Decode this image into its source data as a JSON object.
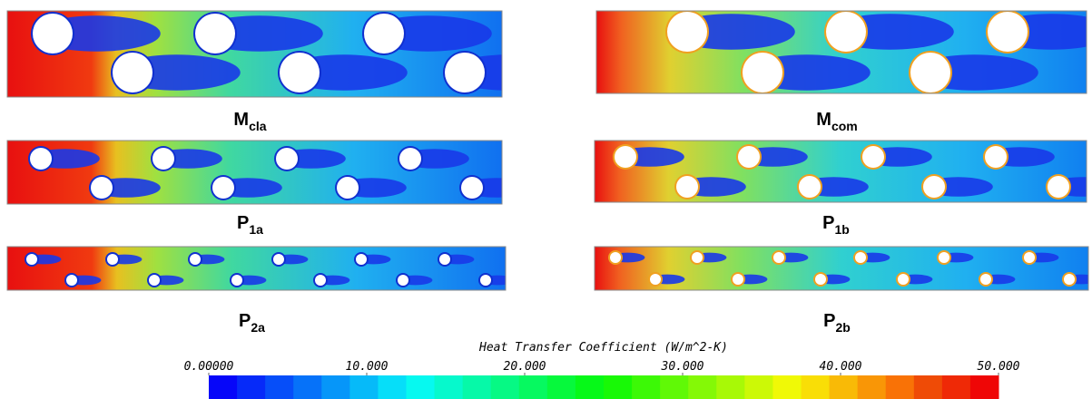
{
  "panels": [
    {
      "label": {
        "main": "M",
        "sub": "cla"
      }
    },
    {
      "label": {
        "main": "M",
        "sub": "com"
      }
    },
    {
      "label": {
        "main": "P",
        "sub": "1a"
      }
    },
    {
      "label": {
        "main": "P",
        "sub": "1b"
      }
    },
    {
      "label": {
        "main": "P",
        "sub": "2a"
      }
    },
    {
      "label": {
        "main": "P",
        "sub": "2b"
      }
    }
  ],
  "colorbar": {
    "title": "Heat Transfer Coefficient (W/m^2-K)",
    "ticks": [
      {
        "value": 0,
        "label": "0.00000"
      },
      {
        "value": 10,
        "label": "10.000"
      },
      {
        "value": 20,
        "label": "20.000"
      },
      {
        "value": 30,
        "label": "30.000"
      },
      {
        "value": 40,
        "label": "40.000"
      },
      {
        "value": 50,
        "label": "50.000"
      }
    ]
  }
}
